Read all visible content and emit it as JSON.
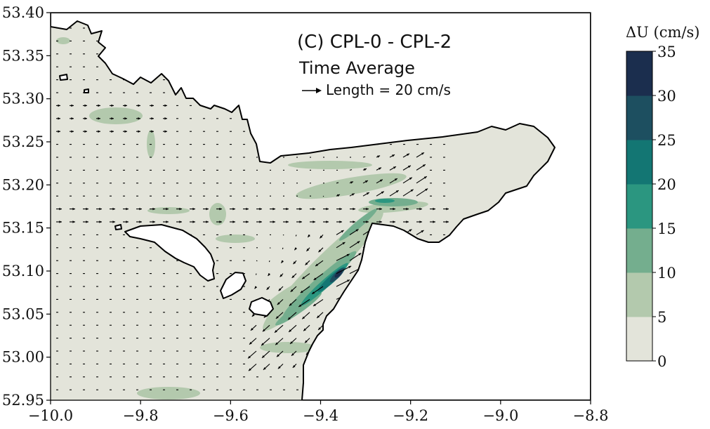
{
  "title": "(C) CPL-0 - CPL-2",
  "subtitle": "Time Average",
  "arrow_key_label": "Length = 20 cm/s",
  "arrow_key": {
    "length": 20,
    "unit": "cm/s"
  },
  "map": {
    "xlim": [
      -10.0,
      -8.8
    ],
    "ylim": [
      52.95,
      53.4
    ],
    "x_ticks": [
      -10.0,
      -9.8,
      -9.6,
      -9.4,
      -9.2,
      -9.0,
      -8.8
    ],
    "x_tick_labels": [
      "−10.0",
      "−9.8",
      "−9.6",
      "−9.4",
      "−9.2",
      "−9.0",
      "−8.8"
    ],
    "y_ticks": [
      52.95,
      53.0,
      53.05,
      53.1,
      53.15,
      53.2,
      53.25,
      53.3,
      53.35,
      53.4
    ],
    "y_tick_labels": [
      "52.95",
      "53.00",
      "53.05",
      "53.10",
      "53.15",
      "53.20",
      "53.25",
      "53.30",
      "53.35",
      "53.40"
    ]
  },
  "colorbar": {
    "label": "ΔU (cm/s)",
    "levels": [
      0,
      5,
      10,
      15,
      20,
      25,
      30,
      35
    ],
    "level_labels": [
      "0",
      "5",
      "10",
      "15",
      "20",
      "25",
      "30",
      "35"
    ],
    "colors": [
      "#e3e4da",
      "#b3c9ad",
      "#74ae8e",
      "#2b9680",
      "#137673",
      "#1d4f60",
      "#1b2e4e"
    ]
  },
  "colors": {
    "land": "#ffffff",
    "sea_background": "#e3e4da",
    "coastline": "#000000",
    "arrow": "#000000"
  }
}
